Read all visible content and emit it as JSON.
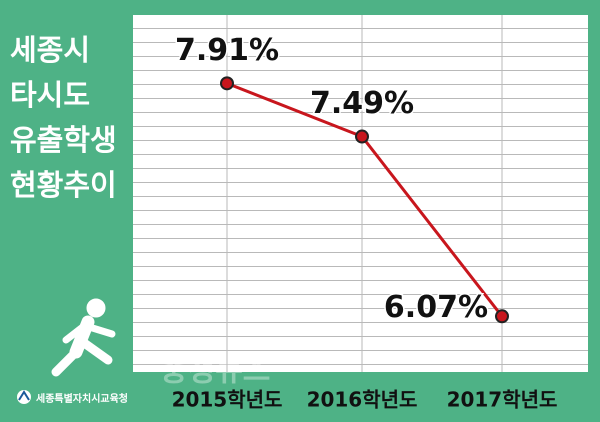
{
  "chart_data": {
    "type": "line",
    "title": "세종시 타시도 유출학생 현황추이",
    "categories": [
      "2015학년도",
      "2016학년도",
      "2017학년도"
    ],
    "series": [
      {
        "color": "#c8161d",
        "values": [
          7.91,
          7.49,
          6.07
        ],
        "value_labels": [
          "7.91%",
          "7.49%",
          "6.07%"
        ]
      }
    ],
    "ylim": [
      5.63,
      8.45
    ],
    "source": "세종특별자치시교육청",
    "watermark": "충청뉴스"
  }
}
